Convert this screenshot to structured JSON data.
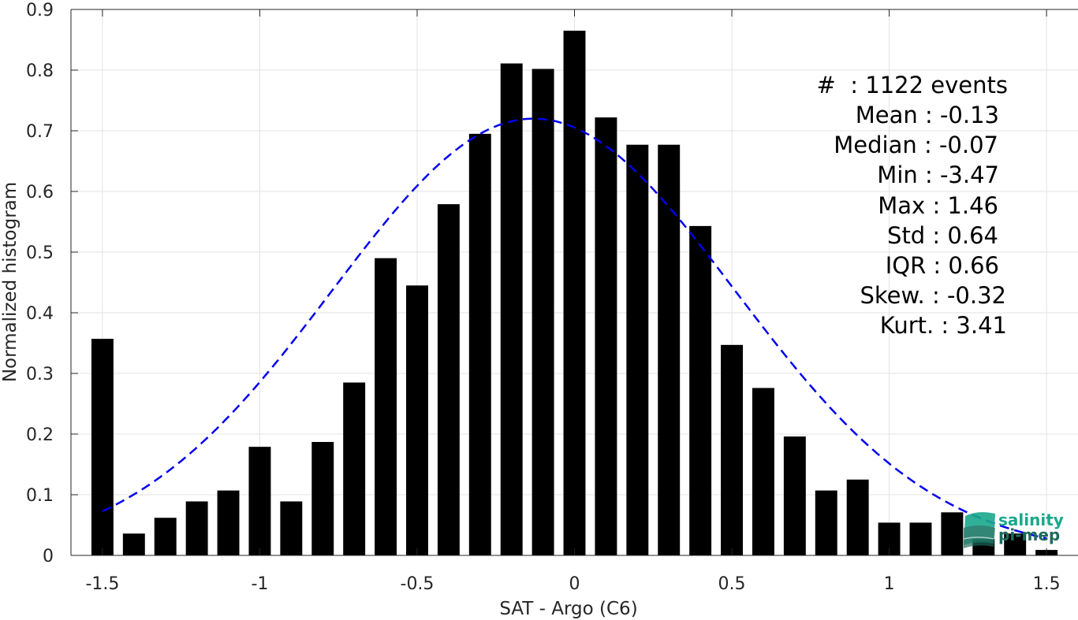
{
  "chart_data": {
    "type": "bar",
    "xlabel": "SAT - Argo (C6)",
    "ylabel": "Normalized histogram",
    "xlim": [
      -1.6,
      1.6
    ],
    "ylim": [
      0,
      0.9
    ],
    "xticks": [
      -1.5,
      -1,
      -0.5,
      0,
      0.5,
      1,
      1.5
    ],
    "xtick_labels": [
      "-1.5",
      "-1",
      "-0.5",
      "0",
      "0.5",
      "1",
      "1.5"
    ],
    "yticks": [
      0,
      0.1,
      0.2,
      0.3,
      0.4,
      0.5,
      0.6,
      0.7,
      0.8,
      0.9
    ],
    "ytick_labels": [
      "0",
      "0.1",
      "0.2",
      "0.3",
      "0.4",
      "0.5",
      "0.6",
      "0.7",
      "0.8",
      "0.9"
    ],
    "grid": true,
    "bar_color": "#000000",
    "x": [
      -1.5,
      -1.4,
      -1.3,
      -1.2,
      -1.1,
      -1.0,
      -0.9,
      -0.8,
      -0.7,
      -0.6,
      -0.5,
      -0.4,
      -0.3,
      -0.2,
      -0.1,
      0.0,
      0.1,
      0.2,
      0.3,
      0.4,
      0.5,
      0.6,
      0.7,
      0.8,
      0.9,
      1.0,
      1.1,
      1.2,
      1.3,
      1.4,
      1.5
    ],
    "values": [
      0.357,
      0.036,
      0.062,
      0.089,
      0.107,
      0.179,
      0.089,
      0.187,
      0.285,
      0.49,
      0.445,
      0.579,
      0.695,
      0.811,
      0.802,
      0.865,
      0.722,
      0.677,
      0.677,
      0.543,
      0.347,
      0.276,
      0.196,
      0.107,
      0.125,
      0.054,
      0.054,
      0.071,
      0.027,
      0.036,
      0.009
    ],
    "fit_curve": {
      "style": "dashed",
      "color": "#0000ee",
      "mean": -0.13,
      "std": 0.64,
      "peak": 0.72,
      "x_range": [
        -1.5,
        1.5
      ]
    },
    "annotations": [
      "#  : 1122 events",
      "Mean : -0.13",
      "Median : -0.07",
      "Min : -3.47",
      "Max : 1.46",
      "Std : 0.64",
      "IQR : 0.66",
      "Skew. : -0.32",
      "Kurt. : 3.41"
    ],
    "logo": {
      "line1": "salinity",
      "line2": "pi-mep",
      "color1": "#1aa88c",
      "color2": "#1d6b5c"
    }
  }
}
